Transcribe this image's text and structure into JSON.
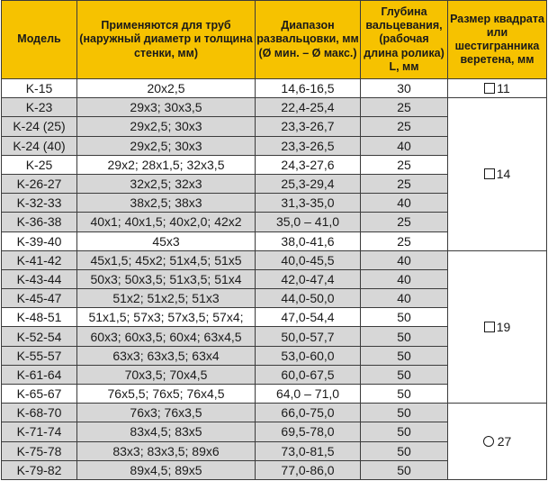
{
  "header": {
    "model": "Модель",
    "tubes": "Применяются для труб (наружный диаметр и толщина стенки, мм)",
    "range": "Диапазон развальцовки, мм (Ø мин. – Ø макс.)",
    "depth": "Глубина вальцевания, (рабочая длина ролика) L, мм",
    "size": "Размер квадрата или шестигранника веретена, мм"
  },
  "rows": [
    {
      "model": "K-15",
      "tubes": "20x2,5",
      "range": "14,6-16,5",
      "depth": "30"
    },
    {
      "model": "K-23",
      "tubes": "29x3; 30x3,5",
      "range": "22,4-25,4",
      "depth": "25"
    },
    {
      "model": "K-24 (25)",
      "tubes": "29x2,5; 30x3",
      "range": "23,3-26,7",
      "depth": "25"
    },
    {
      "model": "K-24 (40)",
      "tubes": "29x2,5; 30x3",
      "range": "23,3-26,5",
      "depth": "40"
    },
    {
      "model": "K-25",
      "tubes": "29x2; 28x1,5; 32x3,5",
      "range": "24,3-27,6",
      "depth": "25"
    },
    {
      "model": "K-26-27",
      "tubes": "32x2,5; 32x3",
      "range": "25,3-29,4",
      "depth": "25"
    },
    {
      "model": "K-32-33",
      "tubes": "38x2,5; 38x3",
      "range": "31,3-35,0",
      "depth": "40"
    },
    {
      "model": "K-36-38",
      "tubes": "40x1; 40x1,5; 40x2,0; 42x2",
      "range": "35,0 – 41,0",
      "depth": "25"
    },
    {
      "model": "K-39-40",
      "tubes": "45x3",
      "range": "38,0-41,6",
      "depth": "25"
    },
    {
      "model": "K-41-42",
      "tubes": "45x1,5; 45x2; 51x4,5; 51x5",
      "range": "40,0-45,5",
      "depth": "40"
    },
    {
      "model": "K-43-44",
      "tubes": "50x3; 50x3,5; 51x3,5; 51x4",
      "range": "42,0-47,4",
      "depth": "40"
    },
    {
      "model": "K-45-47",
      "tubes": "51x2; 51x2,5; 51x3",
      "range": "44,0-50,0",
      "depth": "40"
    },
    {
      "model": "K-48-51",
      "tubes": "51x1,5; 57x3; 57x3,5; 57x4;",
      "range": "47,0-54,4",
      "depth": "50"
    },
    {
      "model": "K-52-54",
      "tubes": "60x3; 60x3,5; 60x4; 63x4,5",
      "range": "50,0-57,7",
      "depth": "50"
    },
    {
      "model": "K-55-57",
      "tubes": "63x3; 63x3,5; 63x4",
      "range": "53,0-60,0",
      "depth": "50"
    },
    {
      "model": "K-61-64",
      "tubes": "70x3,5; 70x4,5",
      "range": "60,0-67,5",
      "depth": "50"
    },
    {
      "model": "K-65-67",
      "tubes": "76x5,5; 76x5; 76x4,5",
      "range": "64,0 – 71,0",
      "depth": "50"
    },
    {
      "model": "K-68-70",
      "tubes": "76x3; 76x3,5",
      "range": "66,0-75,0",
      "depth": "50"
    },
    {
      "model": "K-71-74",
      "tubes": "83x4,5; 83x5",
      "range": "69,5-78,0",
      "depth": "50"
    },
    {
      "model": "K-75-78",
      "tubes": "83x3; 83x3,5; 89x6",
      "range": "73,0-81,5",
      "depth": "50"
    },
    {
      "model": "K-79-82",
      "tubes": "89x4,5; 89x5",
      "range": "77,0-86,0",
      "depth": "50"
    }
  ],
  "size_groups": [
    {
      "label": "11",
      "icon": "square-icon",
      "start": 0,
      "rowspan": 1
    },
    {
      "label": "14",
      "icon": "square-icon",
      "start": 1,
      "rowspan": 8
    },
    {
      "label": "19",
      "icon": "square-icon",
      "start": 9,
      "rowspan": 8
    },
    {
      "label": "27",
      "icon": "circle-icon",
      "start": 17,
      "rowspan": 4
    }
  ],
  "shaded_rows": [
    1,
    2,
    3,
    5,
    6,
    7,
    9,
    10,
    11,
    13,
    14,
    15,
    17,
    18,
    19,
    20
  ],
  "colors": {
    "header_bg": "#f6c200",
    "row_shade": "#d7d7d7",
    "border": "#3c3c3c"
  }
}
